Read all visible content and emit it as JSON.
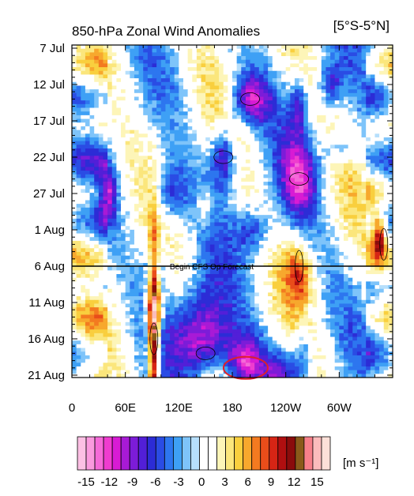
{
  "chart_data": {
    "type": "heatmap",
    "title": "850-hPa Zonal Wind Anomalies",
    "region_label": "[5°S-5°N]",
    "y_ticks": [
      "7 Jul",
      "12 Jul",
      "17 Jul",
      "22 Jul",
      "27 Jul",
      "1 Aug",
      "6 Aug",
      "11 Aug",
      "16 Aug",
      "21 Aug"
    ],
    "x_ticks": [
      "0",
      "60E",
      "120E",
      "180",
      "120W",
      "60W"
    ],
    "x_tick_lon": [
      0,
      60,
      120,
      180,
      240,
      300
    ],
    "xlim": [
      0,
      360
    ],
    "ylim_days": [
      0,
      46
    ],
    "forecast_line_label": "Begin CFS Op Forecast",
    "forecast_line_day": 30,
    "highlight_ellipse": {
      "lon": 195,
      "day": 44,
      "color": "#e0202a"
    },
    "colorbar": {
      "unit": "[m s⁻¹]",
      "tick_labels": [
        "-15",
        "-12",
        "-9",
        "-6",
        "-3",
        "0",
        "3",
        "6",
        "9",
        "12",
        "15"
      ],
      "colors": [
        "#fcc0e4",
        "#fa9ade",
        "#f56ad8",
        "#ef3ccf",
        "#d81bd4",
        "#a81ad6",
        "#7c1cd8",
        "#521fd8",
        "#2c2cd6",
        "#2a4ce4",
        "#2d76ef",
        "#3ea0f5",
        "#7ec4fa",
        "#b6dffc",
        "#ffffff",
        "#ffffff",
        "#fdf5b8",
        "#fbe67c",
        "#f9cf3e",
        "#f7a82d",
        "#f37a20",
        "#e94d1a",
        "#d62515",
        "#b00f10",
        "#8a0c0c",
        "#8a5a1a",
        "#f7808a",
        "#fbbcbc",
        "#fde0d8"
      ]
    },
    "features": [
      {
        "sign": "positive",
        "lon": 92,
        "day": 40,
        "peak": 14
      },
      {
        "sign": "negative",
        "lon": 150,
        "day": 42,
        "peak": -9
      },
      {
        "sign": "negative",
        "lon": 200,
        "day": 7,
        "peak": -9
      },
      {
        "sign": "negative",
        "lon": 170,
        "day": 15,
        "peak": -9
      },
      {
        "sign": "negative",
        "lon": 255,
        "day": 18,
        "peak": -9
      },
      {
        "sign": "positive",
        "lon": 350,
        "day": 27,
        "peak": 9
      },
      {
        "sign": "positive",
        "lon": 255,
        "day": 30,
        "peak": 6
      }
    ]
  }
}
